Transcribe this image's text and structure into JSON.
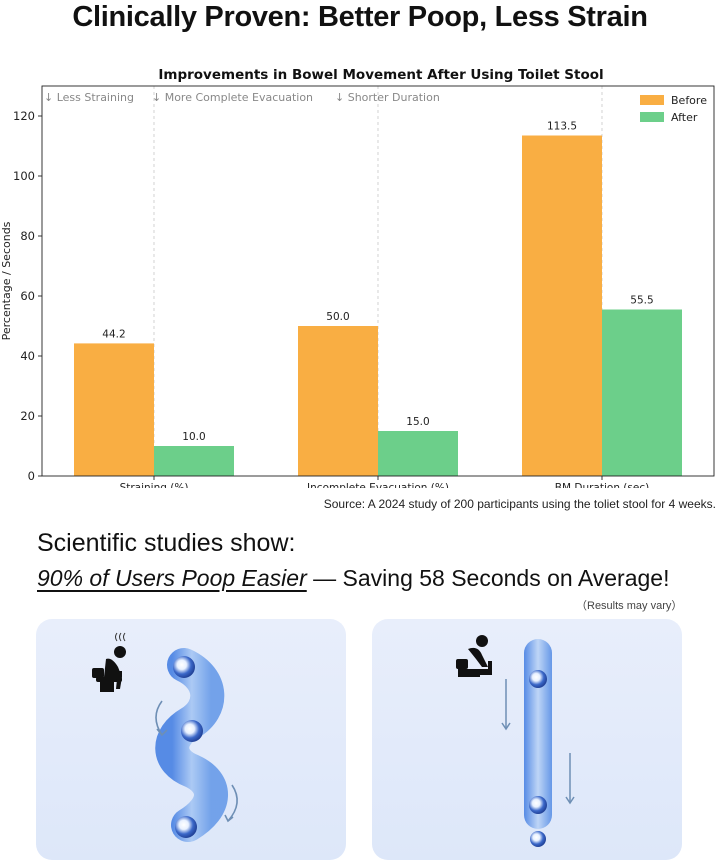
{
  "headline": "Clinically Proven: Better Poop, Less Strain",
  "chart_data": {
    "type": "bar",
    "title": "Improvements in Bowel Movement After Using Toilet Stool",
    "ylabel": "Percentage / Seconds",
    "xlabel": "",
    "categories": [
      "Straining (%)",
      "Incomplete Evacuation (%)",
      "BM Duration (sec)"
    ],
    "series": [
      {
        "name": "Before",
        "values": [
          44.2,
          50.0,
          113.5
        ],
        "color": "#f9ae43"
      },
      {
        "name": "After",
        "values": [
          10.0,
          15.0,
          55.5
        ],
        "color": "#6ccf8a"
      }
    ],
    "data_labels": [
      [
        "44.2",
        "50.0",
        "113.5"
      ],
      [
        "10.0",
        "15.0",
        "55.5"
      ]
    ],
    "ylim": [
      0,
      130
    ],
    "yticks": [
      0,
      20,
      40,
      60,
      80,
      100,
      120
    ],
    "grid": "vertical-dashed",
    "legend": "top-right",
    "annotations": [
      "↓ Less Straining",
      "↓ More Complete Evacuation",
      "↓ Shorter Duration"
    ]
  },
  "source": "Source: A 2024 study of 200 participants using the toliet stool for 4 weeks.",
  "studies_text": "Scientific studies show:",
  "claim_highlight": "90% of Users Poop Easier",
  "claim_rest": " — Saving 58 Seconds on Average!",
  "disclaimer": "（Results may vary）",
  "panels": {
    "left_icon": "person-straining-on-toilet-icon",
    "right_icon": "person-squatting-on-stool-icon"
  }
}
